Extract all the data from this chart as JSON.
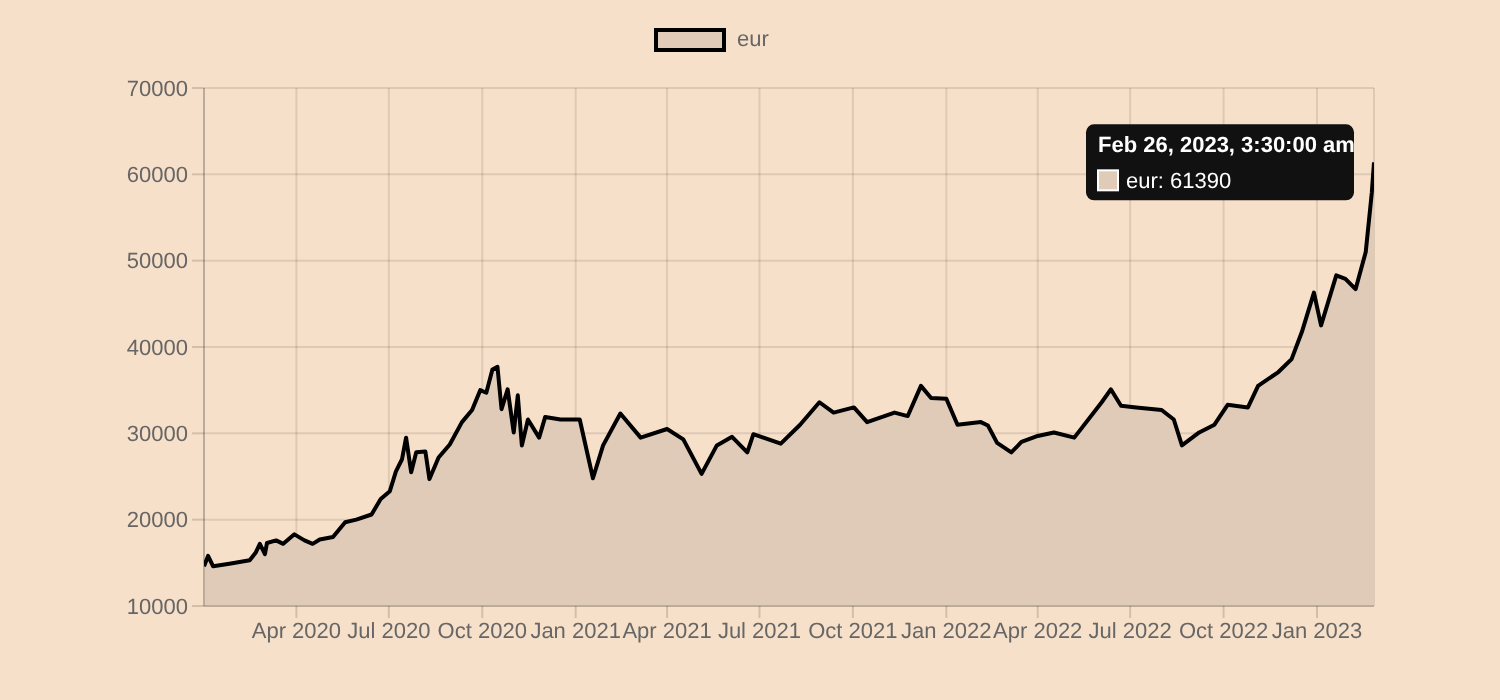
{
  "chart_data": {
    "type": "area",
    "legend": "top",
    "grid": true,
    "marker": "none",
    "line_style": "solid",
    "x": [
      "2020-01-01",
      "2020-01-05",
      "2020-01-10",
      "2020-01-26",
      "2020-02-15",
      "2020-02-21",
      "2020-02-25",
      "2020-03-01",
      "2020-03-03",
      "2020-03-12",
      "2020-03-19",
      "2020-03-30",
      "2020-04-09",
      "2020-04-17",
      "2020-04-24",
      "2020-05-07",
      "2020-05-19",
      "2020-05-30",
      "2020-06-14",
      "2020-06-23",
      "2020-07-02",
      "2020-07-08",
      "2020-07-14",
      "2020-07-18",
      "2020-07-23",
      "2020-07-28",
      "2020-08-06",
      "2020-08-10",
      "2020-08-19",
      "2020-08-30",
      "2020-09-11",
      "2020-09-21",
      "2020-09-29",
      "2020-10-05",
      "2020-10-11",
      "2020-10-16",
      "2020-10-20",
      "2020-10-26",
      "2020-11-01",
      "2020-11-05",
      "2020-11-09",
      "2020-11-15",
      "2020-11-26",
      "2020-12-02",
      "2020-12-17",
      "2021-01-05",
      "2021-01-18",
      "2021-01-28",
      "2021-02-14",
      "2021-03-06",
      "2021-04-01",
      "2021-04-17",
      "2021-05-05",
      "2021-05-20",
      "2021-06-04",
      "2021-06-19",
      "2021-06-25",
      "2021-07-22",
      "2021-08-10",
      "2021-08-29",
      "2021-09-12",
      "2021-10-02",
      "2021-10-15",
      "2021-11-11",
      "2021-11-24",
      "2021-12-07",
      "2021-12-17",
      "2022-01-01",
      "2022-01-12",
      "2022-02-04",
      "2022-02-11",
      "2022-02-20",
      "2022-03-06",
      "2022-03-16",
      "2022-04-01",
      "2022-04-17",
      "2022-05-07",
      "2022-06-03",
      "2022-06-12",
      "2022-06-22",
      "2022-07-07",
      "2022-08-01",
      "2022-08-13",
      "2022-08-21",
      "2022-09-07",
      "2022-09-22",
      "2022-10-05",
      "2022-10-25",
      "2022-11-04",
      "2022-11-24",
      "2022-12-07",
      "2022-12-17",
      "2022-12-29",
      "2023-01-05",
      "2023-01-20",
      "2023-01-29",
      "2023-02-08",
      "2023-02-18",
      "2023-02-24",
      "2023-02-26T03:30"
    ],
    "series": [
      {
        "name": "eur",
        "color": "#000000",
        "values": [
          14600,
          15800,
          14600,
          14900,
          15300,
          16200,
          17200,
          16000,
          17300,
          17600,
          17200,
          18300,
          17600,
          17200,
          17700,
          18000,
          19700,
          20000,
          20600,
          22400,
          23300,
          25600,
          27000,
          29500,
          25500,
          27800,
          27900,
          24700,
          27200,
          28700,
          31300,
          32700,
          35000,
          34700,
          37400,
          37700,
          32800,
          35100,
          30100,
          34400,
          28600,
          31600,
          29500,
          31900,
          31600,
          31600,
          24800,
          28600,
          32300,
          29500,
          30500,
          29300,
          25300,
          28600,
          29600,
          27800,
          29900,
          28800,
          31000,
          33600,
          32400,
          33000,
          31300,
          32400,
          32000,
          35500,
          34100,
          34000,
          31000,
          31300,
          30900,
          28900,
          27800,
          29000,
          29700,
          30100,
          29500,
          33600,
          35100,
          33200,
          33000,
          32700,
          31600,
          28600,
          30100,
          31000,
          33300,
          33000,
          35500,
          37100,
          38600,
          41700,
          46300,
          42500,
          48300,
          47900,
          46700,
          51000,
          57900,
          61390
        ]
      }
    ],
    "xlim": [
      "2020-01-01",
      "2023-02-26T03:30"
    ],
    "xticks": [
      {
        "value": "2020-04-01",
        "label": "Apr 2020"
      },
      {
        "value": "2020-07-01",
        "label": "Jul 2020"
      },
      {
        "value": "2020-10-01",
        "label": "Oct 2020"
      },
      {
        "value": "2021-01-01",
        "label": "Jan 2021"
      },
      {
        "value": "2021-04-01",
        "label": "Apr 2021"
      },
      {
        "value": "2021-07-01",
        "label": "Jul 2021"
      },
      {
        "value": "2021-10-01",
        "label": "Oct 2021"
      },
      {
        "value": "2022-01-01",
        "label": "Jan 2022"
      },
      {
        "value": "2022-04-01",
        "label": "Apr 2022"
      },
      {
        "value": "2022-07-01",
        "label": "Jul 2022"
      },
      {
        "value": "2022-10-01",
        "label": "Oct 2022"
      },
      {
        "value": "2023-01-01",
        "label": "Jan 2023"
      }
    ],
    "ylim": [
      10000,
      70000
    ],
    "yticks": [
      10000,
      20000,
      30000,
      40000,
      50000,
      60000,
      70000
    ],
    "annotations": [
      {
        "text": "Feb 26, 2023, 3:30:00 am",
        "x": "2023-02-26T03:30",
        "y": 61390
      },
      "eur: 61390"
    ]
  }
}
